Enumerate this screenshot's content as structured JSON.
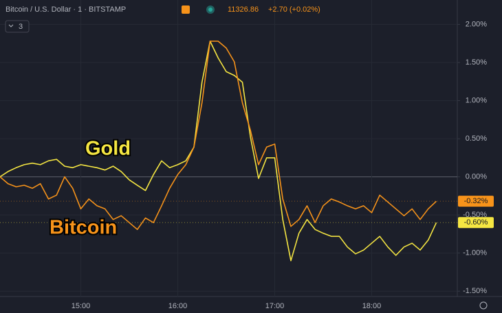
{
  "header": {
    "symbol": "Bitcoin / U.S. Dollar · 1 · BITSTAMP",
    "price": "11326.86",
    "change": "+2.70 (+0.02%)",
    "button": "3"
  },
  "chart_data": {
    "type": "line",
    "x": [
      "14:10",
      "14:15",
      "14:20",
      "14:25",
      "14:30",
      "14:35",
      "14:40",
      "14:45",
      "14:50",
      "14:55",
      "15:00",
      "15:05",
      "15:10",
      "15:15",
      "15:20",
      "15:25",
      "15:30",
      "15:35",
      "15:40",
      "15:45",
      "15:50",
      "15:55",
      "16:00",
      "16:05",
      "16:10",
      "16:15",
      "16:20",
      "16:25",
      "16:30",
      "16:35",
      "16:40",
      "16:45",
      "16:50",
      "16:55",
      "17:00",
      "17:05",
      "17:10",
      "17:15",
      "17:20",
      "17:25",
      "17:30",
      "17:35",
      "17:40",
      "17:45",
      "17:50",
      "17:55",
      "18:00",
      "18:05",
      "18:10",
      "18:15",
      "18:20",
      "18:25",
      "18:30",
      "18:35",
      "18:40"
    ],
    "xlim": [
      "14:10",
      "18:53"
    ],
    "xticks": [
      "15:00",
      "16:00",
      "17:00",
      "18:00"
    ],
    "ylim": [
      -1.57,
      2.32
    ],
    "yticks": [
      {
        "value": 2,
        "label": "2.00%"
      },
      {
        "value": 1.5,
        "label": "1.50%"
      },
      {
        "value": 1,
        "label": "1.00%"
      },
      {
        "value": 0.5,
        "label": "0.50%"
      },
      {
        "value": 0,
        "label": "0.00%"
      },
      {
        "value": -0.5,
        "label": "-0.50%"
      },
      {
        "value": -1,
        "label": "-1.00%"
      },
      {
        "value": -1.5,
        "label": "-1.50%"
      }
    ],
    "grid": true,
    "series": [
      {
        "name": "Bitcoin",
        "color": "#f7931a",
        "last_label": "-0.32%",
        "values": [
          0.0,
          -0.09,
          -0.13,
          -0.11,
          -0.15,
          -0.09,
          -0.29,
          -0.24,
          0.0,
          -0.15,
          -0.42,
          -0.29,
          -0.38,
          -0.42,
          -0.56,
          -0.51,
          -0.6,
          -0.69,
          -0.54,
          -0.6,
          -0.38,
          -0.15,
          0.03,
          0.16,
          0.39,
          0.97,
          1.78,
          1.78,
          1.69,
          1.51,
          0.97,
          0.61,
          0.16,
          0.39,
          0.43,
          -0.29,
          -0.65,
          -0.56,
          -0.38,
          -0.6,
          -0.38,
          -0.29,
          -0.33,
          -0.38,
          -0.42,
          -0.38,
          -0.47,
          -0.24,
          -0.33,
          -0.42,
          -0.51,
          -0.42,
          -0.56,
          -0.42,
          -0.32
        ]
      },
      {
        "name": "Gold",
        "color": "#f5e642",
        "last_label": "-0.60%",
        "values": [
          0.0,
          0.07,
          0.12,
          0.16,
          0.18,
          0.16,
          0.21,
          0.23,
          0.14,
          0.12,
          0.16,
          0.14,
          0.12,
          0.09,
          0.14,
          0.07,
          -0.04,
          -0.11,
          -0.18,
          0.03,
          0.21,
          0.12,
          0.16,
          0.21,
          0.39,
          1.24,
          1.78,
          1.56,
          1.38,
          1.33,
          1.24,
          0.52,
          -0.02,
          0.25,
          0.25,
          -0.56,
          -1.1,
          -0.74,
          -0.56,
          -0.69,
          -0.74,
          -0.78,
          -0.78,
          -0.92,
          -1.01,
          -0.96,
          -0.87,
          -0.78,
          -0.92,
          -1.03,
          -0.92,
          -0.87,
          -0.96,
          -0.83,
          -0.6
        ]
      }
    ]
  }
}
